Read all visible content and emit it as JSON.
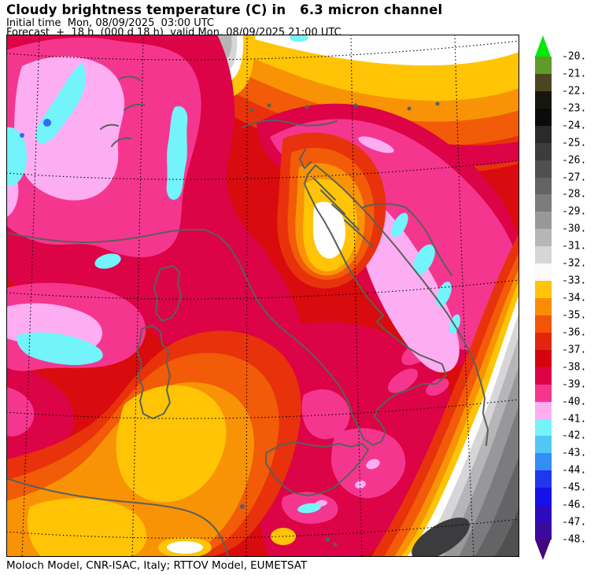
{
  "header": {
    "title": "Cloudy brightness temperature (C) in   6.3 micron channel",
    "initial_time_line": "Initial time  Mon, 08/09/2025  03:00 UTC",
    "forecast_line": "Forecast  +  18 h  (000 d 18 h)  valid Mon, 08/09/2025 21:00 UTC"
  },
  "footer": {
    "credits": "Moloch Model, CNR-ISAC, Italy; RTTOV Model, EUMETSAT"
  },
  "colorbar": {
    "ticks": [
      "-20.",
      "-21.",
      "-22.",
      "-23.",
      "-24.",
      "-25.",
      "-26.",
      "-27.",
      "-28.",
      "-29.",
      "-30.",
      "-31.",
      "-32.",
      "-33.",
      "-34.",
      "-35.",
      "-36.",
      "-37.",
      "-38.",
      "-39.",
      "-40.",
      "-41.",
      "-42.",
      "-43.",
      "-44.",
      "-45.",
      "-46.",
      "-47.",
      "-48."
    ],
    "cell_colors": [
      "#5f9b28",
      "#4c4522",
      "#17150f",
      "#0b0b0d",
      "#2a2a2c",
      "#3c3c3e",
      "#505050",
      "#646466",
      "#7c7c7e",
      "#98989a",
      "#b6b6b8",
      "#d6d6d8",
      "#fbfbfb",
      "#ffc405",
      "#f98e06",
      "#f25507",
      "#e2250c",
      "#d5020f",
      "#dc0346",
      "#f5368f",
      "#fdaef3",
      "#73f3fa",
      "#52c7f7",
      "#338df4",
      "#2137ee",
      "#1511e8",
      "#2b0bc0",
      "#3c099f"
    ],
    "arrow_top_color": "#00e90a",
    "arrow_bottom_color": "#44067d"
  },
  "map": {
    "palette": {
      "red": "#d90b0e",
      "crimson": "#dc0346",
      "magenta": "#f5368f",
      "light_pink": "#fdaef3",
      "cyan": "#73f3fa",
      "blue_dot": "#2f6cf2",
      "orange_red": "#e8320b",
      "orange": "#f25b07",
      "amber": "#f99306",
      "gold": "#ffc405",
      "white": "#fefefe",
      "gray1": "#d6d6d8",
      "gray2": "#b6b6b8",
      "gray3": "#98989a",
      "gray4": "#7c7c7e",
      "gray5": "#646466",
      "gray6": "#505050",
      "gray7": "#3c3c3e",
      "coastline": "#5a605c",
      "grid": "#000000",
      "frame": "#000000"
    }
  }
}
